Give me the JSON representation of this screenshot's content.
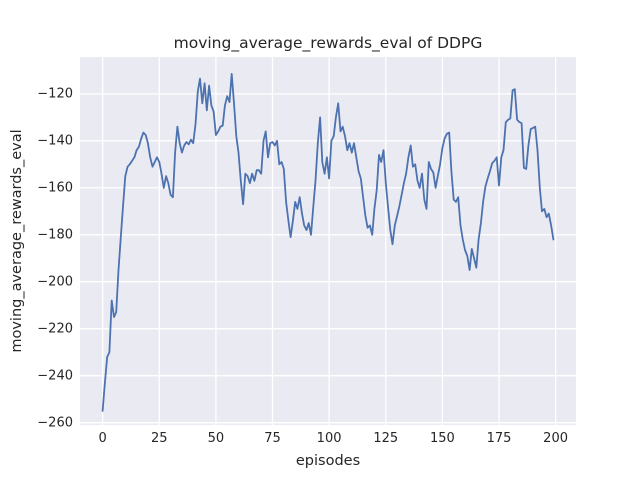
{
  "chart_data": {
    "type": "line",
    "title": "moving_average_rewards_eval of DDPG",
    "xlabel": "episodes",
    "ylabel": "moving_average_rewards_eval",
    "xlim": [
      -10,
      209
    ],
    "ylim": [
      -261,
      -104.3
    ],
    "xticks": [
      0,
      25,
      50,
      75,
      100,
      125,
      150,
      175,
      200
    ],
    "yticks": [
      -120,
      -140,
      -160,
      -180,
      -200,
      -220,
      -240,
      -260
    ],
    "grid": true,
    "legend": "none",
    "style": "seaborn-darkgrid",
    "line_color": "#4c72b0",
    "axes_bg_color": "#eaeaf2",
    "grid_color": "#ffffff",
    "text_color": "#262626",
    "x_start": 0,
    "x_step": 1,
    "values": [
      -255,
      -243,
      -232,
      -230,
      -208,
      -215,
      -213,
      -195,
      -181,
      -168,
      -155,
      -151,
      -150,
      -148.5,
      -147,
      -144,
      -142.5,
      -139,
      -136.5,
      -137.5,
      -141,
      -147,
      -151,
      -149,
      -147,
      -149,
      -154,
      -160,
      -155,
      -158,
      -163,
      -164,
      -145,
      -134,
      -141,
      -145,
      -142,
      -140.5,
      -141.5,
      -139.5,
      -141,
      -133,
      -119,
      -113.5,
      -124,
      -115.5,
      -127,
      -116.5,
      -125,
      -127.5,
      -137.5,
      -136,
      -134,
      -133.5,
      -125,
      -121,
      -123.5,
      -111.5,
      -124,
      -138,
      -145,
      -157,
      -167,
      -154,
      -155,
      -158,
      -154,
      -157,
      -152.5,
      -152.5,
      -154,
      -140,
      -136,
      -147,
      -141,
      -140.5,
      -142,
      -140,
      -150,
      -149,
      -152,
      -166,
      -174,
      -181,
      -174,
      -166,
      -169,
      -164,
      -171,
      -176,
      -178,
      -175,
      -180,
      -168,
      -157,
      -141,
      -130,
      -149,
      -154,
      -147,
      -156,
      -140,
      -138,
      -130,
      -124,
      -136,
      -134,
      -138,
      -144,
      -141,
      -145,
      -141,
      -147,
      -153,
      -156,
      -164,
      -172,
      -177,
      -176,
      -180,
      -169,
      -161,
      -146,
      -149,
      -144,
      -158,
      -168,
      -178,
      -184,
      -176,
      -172,
      -168,
      -163,
      -158,
      -154,
      -147,
      -142,
      -151,
      -150,
      -157,
      -160,
      -154,
      -165,
      -169,
      -149,
      -152,
      -153.5,
      -160,
      -155,
      -150,
      -143,
      -139,
      -137,
      -136.5,
      -153,
      -165,
      -166,
      -164,
      -176,
      -182,
      -186.5,
      -189,
      -195,
      -186,
      -190,
      -194,
      -182,
      -175,
      -166,
      -159.5,
      -156,
      -153,
      -149.5,
      -148.5,
      -147,
      -159,
      -147,
      -144,
      -132,
      -131,
      -130.5,
      -118.5,
      -118,
      -131,
      -132,
      -132.5,
      -151.5,
      -152,
      -142,
      -135,
      -134.5,
      -134,
      -144,
      -160,
      -170,
      -169,
      -172.5,
      -171,
      -176,
      -182
    ]
  }
}
